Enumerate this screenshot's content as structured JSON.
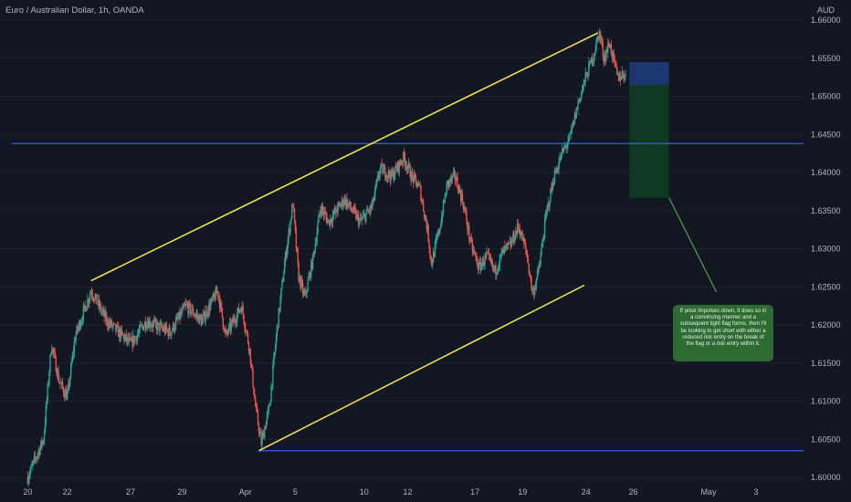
{
  "header": {
    "title": "Euro / Australian Dollar, 1h, OANDA",
    "currency": "AUD"
  },
  "note": {
    "text": "If price impulses down, it does so in a convincing manner and a subsequent tight flag forms, then I'll be looking to get short with either a reduced risk entry on the break of the flag or a risk entry within it."
  },
  "colors": {
    "background": "#131722",
    "bull": "#26a69a",
    "bear": "#ef5350",
    "channel": "#f5e94a",
    "level": "#2962ff",
    "stop_zone": "#1e3a7a",
    "target_zone": "#0f3b24",
    "note_bg": "#2e6b33"
  },
  "chart_data": {
    "type": "candlestick",
    "symbol": "Euro / Australian Dollar",
    "timeframe": "1h",
    "source": "OANDA",
    "y_axis": {
      "label": "AUD",
      "ylim": [
        1.6,
        1.66
      ],
      "ticks": [
        "1.60000",
        "1.60500",
        "1.61000",
        "1.61500",
        "1.62000",
        "1.62500",
        "1.63000",
        "1.63500",
        "1.64000",
        "1.64500",
        "1.65000",
        "1.65500",
        "1.66000"
      ]
    },
    "x_axis": {
      "ticks": [
        "20",
        "22",
        "27",
        "29",
        "Apr",
        "5",
        "10",
        "12",
        "17",
        "19",
        "24",
        "26",
        "May",
        "3"
      ],
      "index_range": [
        0,
        100
      ]
    },
    "price_path": [
      [
        2,
        1.6
      ],
      [
        4,
        1.605
      ],
      [
        5,
        1.6175
      ],
      [
        6,
        1.6125
      ],
      [
        7,
        1.6105
      ],
      [
        8,
        1.6185
      ],
      [
        10,
        1.6245
      ],
      [
        12,
        1.6205
      ],
      [
        15,
        1.6175
      ],
      [
        17,
        1.6205
      ],
      [
        20,
        1.619
      ],
      [
        22,
        1.6225
      ],
      [
        24,
        1.6205
      ],
      [
        26,
        1.6245
      ],
      [
        27,
        1.6185
      ],
      [
        29,
        1.6225
      ],
      [
        30,
        1.617
      ],
      [
        30.8,
        1.609
      ],
      [
        31.5,
        1.6045
      ],
      [
        32.5,
        1.609
      ],
      [
        33.5,
        1.6195
      ],
      [
        34.5,
        1.6285
      ],
      [
        35.5,
        1.636
      ],
      [
        36.2,
        1.6265
      ],
      [
        37,
        1.6235
      ],
      [
        38,
        1.6285
      ],
      [
        39,
        1.6355
      ],
      [
        40,
        1.6335
      ],
      [
        42,
        1.6365
      ],
      [
        44,
        1.6335
      ],
      [
        45.5,
        1.6355
      ],
      [
        46.5,
        1.6405
      ],
      [
        48,
        1.6395
      ],
      [
        49.5,
        1.642
      ],
      [
        50.5,
        1.6395
      ],
      [
        51.5,
        1.638
      ],
      [
        52.5,
        1.6325
      ],
      [
        53,
        1.628
      ],
      [
        54,
        1.6325
      ],
      [
        55,
        1.6385
      ],
      [
        56,
        1.6395
      ],
      [
        57,
        1.636
      ],
      [
        58,
        1.6305
      ],
      [
        59,
        1.6275
      ],
      [
        60,
        1.629
      ],
      [
        61,
        1.627
      ],
      [
        62,
        1.6295
      ],
      [
        63,
        1.6305
      ],
      [
        64,
        1.633
      ],
      [
        65,
        1.6295
      ],
      [
        65.8,
        1.624
      ],
      [
        66.6,
        1.6275
      ],
      [
        67.5,
        1.6345
      ],
      [
        68.5,
        1.6395
      ],
      [
        69.5,
        1.6425
      ],
      [
        70.5,
        1.6445
      ],
      [
        71.5,
        1.649
      ],
      [
        72.5,
        1.6525
      ],
      [
        73.5,
        1.6555
      ],
      [
        74.2,
        1.6585
      ],
      [
        74.8,
        1.655
      ],
      [
        75.5,
        1.657
      ],
      [
        76.5,
        1.6525
      ],
      [
        77.5,
        1.653
      ]
    ],
    "channel_upper": [
      [
        10,
        1.6258
      ],
      [
        74,
        1.6583
      ]
    ],
    "channel_lower": [
      [
        31.2,
        1.6035
      ],
      [
        72.3,
        1.6252
      ]
    ],
    "horizontal_levels": [
      {
        "x_start": 0,
        "price": 1.6438
      },
      {
        "x_start": 31.2,
        "price": 1.6035
      }
    ],
    "short_position": {
      "x_range": [
        78,
        83
      ],
      "entry": 1.6515,
      "stop": 1.6545,
      "target": 1.6367
    },
    "annotation_arrow": {
      "from": [
        83,
        1.6367
      ],
      "to": [
        89,
        1.6243
      ]
    }
  }
}
